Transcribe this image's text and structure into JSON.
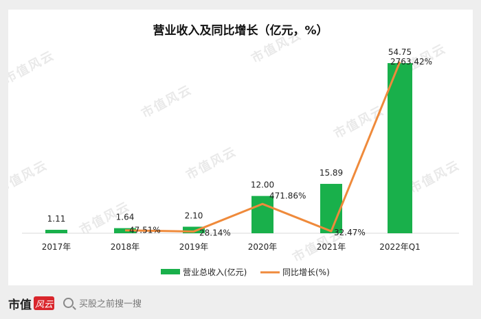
{
  "chart_data": {
    "type": "bar",
    "title": "营业收入及同比增长（亿元，%）",
    "categories": [
      "2017年",
      "2018年",
      "2019年",
      "2020年",
      "2021年",
      "2022年Q1"
    ],
    "ylim_bar": [
      0,
      60
    ],
    "ylim_line": [
      0,
      3000
    ],
    "grid": false,
    "legend_position": "bottom",
    "series": [
      {
        "name": "营业总收入(亿元)",
        "type": "bar",
        "color": "#19b04b",
        "values": [
          1.11,
          1.64,
          2.1,
          12.0,
          15.89,
          54.75
        ],
        "labels": [
          "1.11",
          "1.64",
          "2.10",
          "12.00",
          "15.89",
          "54.75"
        ]
      },
      {
        "name": "同比增长(%)",
        "type": "line",
        "color": "#ef8a3b",
        "values": [
          null,
          47.51,
          28.14,
          471.86,
          32.47,
          2763.42
        ],
        "labels": [
          "",
          "47.51%",
          "28.14%",
          "471.86%",
          "32.47%",
          "2763.42%"
        ]
      }
    ]
  },
  "watermark": "市值风云",
  "footer": {
    "logo_text": "市值",
    "logo_mark": "风云",
    "search_placeholder": "买股之前搜一搜"
  }
}
